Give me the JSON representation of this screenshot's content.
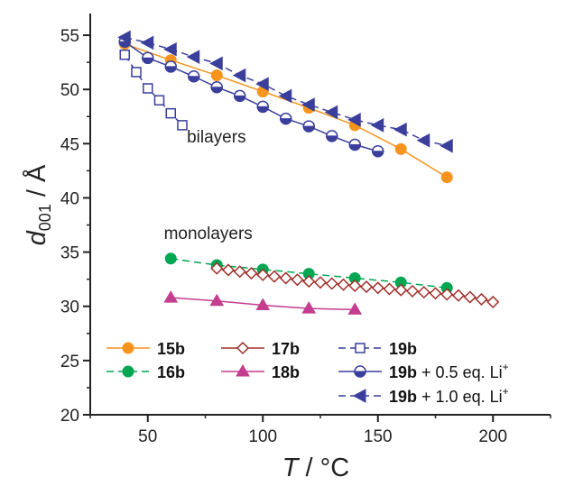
{
  "chart_data": {
    "type": "line",
    "xlim": [
      25,
      225
    ],
    "ylim": [
      20,
      57
    ],
    "x_ticks": [
      50,
      100,
      150,
      200
    ],
    "y_ticks": [
      20,
      25,
      30,
      35,
      40,
      45,
      50,
      55
    ],
    "xlabel_italic": "T",
    "xlabel_rest": " / °C",
    "ylabel_italic": "d",
    "ylabel_sub": "001",
    "ylabel_rest": " / Å",
    "annotations": [
      {
        "text": "bilayers",
        "x": 67,
        "y": 45.1
      },
      {
        "text": "monolayers",
        "x": 57,
        "y": 36.2
      }
    ],
    "series": [
      {
        "name": "15b",
        "color": "#f7941d",
        "marker": "circle-filled",
        "dash": false,
        "x": [
          40,
          60,
          80,
          100,
          120,
          140,
          160,
          180
        ],
        "y": [
          54.2,
          52.7,
          51.3,
          49.8,
          48.3,
          46.7,
          44.5,
          41.9
        ]
      },
      {
        "name": "16b",
        "color": "#00a651",
        "marker": "circle-filled",
        "dash": true,
        "x": [
          60,
          80,
          100,
          120,
          140,
          160,
          180
        ],
        "y": [
          34.4,
          33.8,
          33.4,
          33.0,
          32.6,
          32.2,
          31.7
        ]
      },
      {
        "name": "17b",
        "color": "#a0302a",
        "marker": "diamond-open",
        "dash": false,
        "x": [
          80,
          85,
          90,
          95,
          100,
          105,
          110,
          115,
          120,
          125,
          130,
          135,
          140,
          145,
          150,
          155,
          160,
          165,
          170,
          175,
          180,
          185,
          190,
          195,
          200
        ],
        "y": [
          33.5,
          33.35,
          33.2,
          33.05,
          32.9,
          32.75,
          32.6,
          32.45,
          32.3,
          32.2,
          32.1,
          32.0,
          31.9,
          31.8,
          31.7,
          31.6,
          31.5,
          31.4,
          31.3,
          31.2,
          31.1,
          31.0,
          30.85,
          30.65,
          30.4
        ]
      },
      {
        "name": "18b",
        "color": "#c43d8e",
        "marker": "triangle-up",
        "dash": false,
        "x": [
          60,
          80,
          100,
          120,
          140
        ],
        "y": [
          30.8,
          30.5,
          30.1,
          29.8,
          29.7
        ]
      },
      {
        "name": "19b",
        "color": "#3a3f9c",
        "marker": "square-open",
        "dash": true,
        "x": [
          40,
          45,
          50,
          55,
          60,
          65
        ],
        "y": [
          53.2,
          51.6,
          50.1,
          49.0,
          47.8,
          46.7
        ]
      },
      {
        "name": "19b + 0.5 eq. Li⁺",
        "color": "#3a3f9c",
        "marker": "circle-half",
        "dash": false,
        "x": [
          40,
          50,
          60,
          70,
          80,
          90,
          100,
          110,
          120,
          130,
          140,
          150
        ],
        "y": [
          54.4,
          52.9,
          52.1,
          51.2,
          50.2,
          49.4,
          48.4,
          47.3,
          46.6,
          45.7,
          44.9,
          44.3
        ]
      },
      {
        "name": "19b + 1.0 eq. Li⁺",
        "color": "#3a3f9c",
        "marker": "triangle-left",
        "dash": true,
        "x": [
          40,
          50,
          60,
          70,
          80,
          90,
          100,
          110,
          120,
          130,
          140,
          150,
          160,
          170,
          180
        ],
        "y": [
          54.8,
          54.3,
          53.7,
          53.0,
          52.4,
          51.3,
          50.5,
          49.4,
          48.6,
          47.9,
          47.2,
          46.7,
          46.3,
          45.3,
          44.8
        ]
      }
    ],
    "legend": {
      "placement": "bottom-left",
      "entries": [
        {
          "series": 0,
          "bold": "15b",
          "rest": "",
          "sup": ""
        },
        {
          "series": 2,
          "bold": "17b",
          "rest": "",
          "sup": ""
        },
        {
          "series": 4,
          "bold": "19b",
          "rest": "",
          "sup": ""
        },
        {
          "series": 1,
          "bold": "16b",
          "rest": "",
          "sup": ""
        },
        {
          "series": 3,
          "bold": "18b",
          "rest": "",
          "sup": ""
        },
        {
          "series": 5,
          "bold": "19b",
          "rest": " + 0.5 eq. Li",
          "sup": "+"
        },
        {
          "series": 6,
          "bold": "19b",
          "rest": " + 1.0 eq. Li",
          "sup": "+"
        }
      ]
    }
  }
}
